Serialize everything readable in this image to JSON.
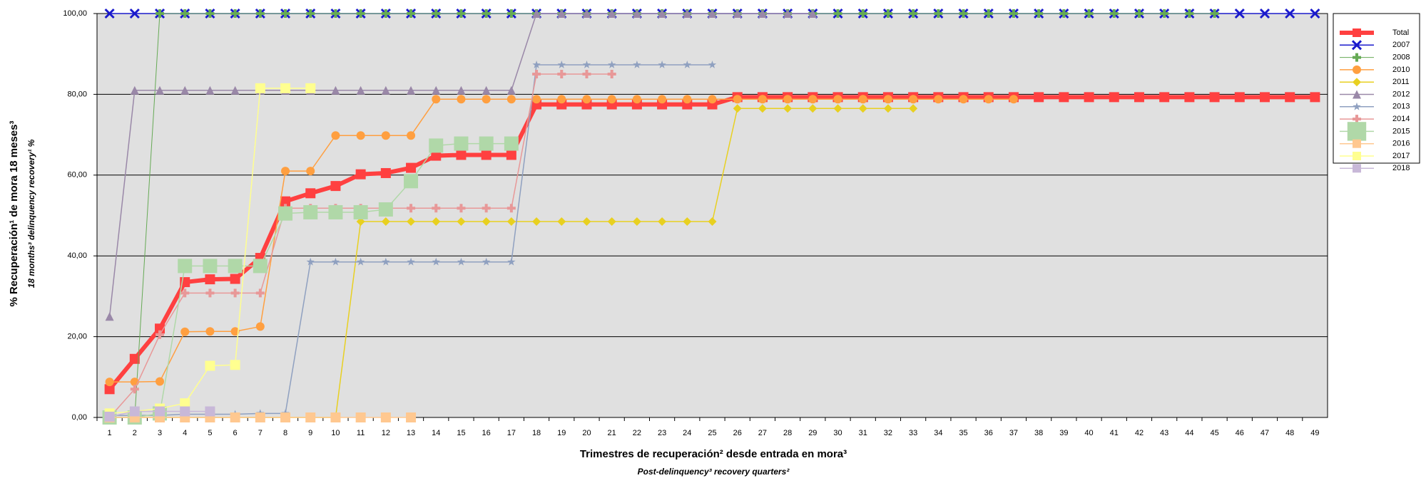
{
  "chart_data": {
    "type": "line",
    "y_label": "% Recuperación¹ de mora 18 meses³",
    "y_label_sub": "18 months³ delinquency recovery¹ %",
    "x_label": "Trimestres de recuperación² desde entrada en mora³",
    "x_label_sub": "Post-delinquency³ recovery quarters²",
    "categories": [
      1,
      2,
      3,
      4,
      5,
      6,
      7,
      8,
      9,
      10,
      11,
      12,
      13,
      14,
      15,
      16,
      17,
      18,
      19,
      20,
      21,
      22,
      23,
      24,
      25,
      26,
      27,
      28,
      29,
      30,
      31,
      32,
      33,
      34,
      35,
      36,
      37,
      38,
      39,
      40,
      41,
      42,
      43,
      44,
      45,
      46,
      47,
      48,
      49
    ],
    "ylim": [
      0,
      100
    ],
    "yticks": [
      {
        "value": 0,
        "label": "0,00"
      },
      {
        "value": 20,
        "label": "20,00"
      },
      {
        "value": 40,
        "label": "40,00"
      },
      {
        "value": 60,
        "label": "60,00"
      },
      {
        "value": 80,
        "label": "80,00"
      },
      {
        "value": 100,
        "label": "100,00"
      }
    ],
    "grid": true,
    "legend": "right",
    "series": [
      {
        "name": "Total",
        "color": "#ff4040",
        "marker": "square",
        "width": 6,
        "values": [
          7,
          14.5,
          22,
          33.5,
          34.2,
          34.3,
          39.5,
          53.5,
          55.5,
          57.3,
          60.2,
          60.5,
          61.8,
          64.8,
          65,
          65,
          65,
          77.5,
          77.5,
          77.5,
          77.5,
          77.5,
          77.5,
          77.5,
          77.5,
          79.3,
          79.3,
          79.3,
          79.3,
          79.3,
          79.3,
          79.3,
          79.3,
          79.3,
          79.3,
          79.3,
          79.3,
          79.3,
          79.3,
          79.3,
          79.3,
          79.3,
          79.3,
          79.3,
          79.3,
          79.3,
          79.3,
          79.3,
          79.3
        ]
      },
      {
        "name": "2007",
        "color": "#1a1acc",
        "marker": "x",
        "width": 1.5,
        "values": [
          100,
          100,
          100,
          100,
          100,
          100,
          100,
          100,
          100,
          100,
          100,
          100,
          100,
          100,
          100,
          100,
          100,
          100,
          100,
          100,
          100,
          100,
          100,
          100,
          100,
          100,
          100,
          100,
          100,
          100,
          100,
          100,
          100,
          100,
          100,
          100,
          100,
          100,
          100,
          100,
          100,
          100,
          100,
          100,
          100,
          100,
          100,
          100,
          100
        ]
      },
      {
        "name": "2008",
        "color": "#66aa55",
        "marker": "plus",
        "width": 1,
        "values": [
          0,
          0,
          100,
          100,
          100,
          100,
          100,
          100,
          100,
          100,
          100,
          100,
          100,
          100,
          100,
          100,
          100,
          100,
          100,
          100,
          100,
          100,
          100,
          100,
          100,
          100,
          100,
          100,
          100,
          100,
          100,
          100,
          100,
          100,
          100,
          100,
          100,
          100,
          100,
          100,
          100,
          100,
          100,
          100,
          100,
          null,
          null,
          null,
          null
        ]
      },
      {
        "name": "2010",
        "color": "#ff9f40",
        "marker": "circle",
        "width": 1.5,
        "values": [
          8.8,
          8.8,
          8.9,
          21.2,
          21.3,
          21.3,
          22.5,
          61,
          61,
          69.8,
          69.8,
          69.8,
          69.8,
          78.8,
          78.8,
          78.8,
          78.8,
          78.8,
          78.8,
          78.8,
          78.8,
          78.8,
          78.8,
          78.8,
          78.8,
          78.8,
          78.8,
          78.8,
          78.8,
          78.8,
          78.8,
          78.8,
          78.8,
          78.8,
          78.8,
          78.8,
          78.8,
          null,
          null,
          null,
          null,
          null,
          null,
          null,
          null,
          null,
          null,
          null,
          null
        ]
      },
      {
        "name": "2011",
        "color": "#e8d020",
        "marker": "diamond",
        "width": 1.5,
        "values": [
          0,
          0,
          0,
          0,
          0,
          0,
          0,
          0,
          0,
          0,
          48.5,
          48.5,
          48.5,
          48.5,
          48.5,
          48.5,
          48.5,
          48.5,
          48.5,
          48.5,
          48.5,
          48.5,
          48.5,
          48.5,
          48.5,
          76.5,
          76.5,
          76.5,
          76.5,
          76.5,
          76.5,
          76.5,
          76.5,
          null,
          null,
          null,
          null,
          null,
          null,
          null,
          null,
          null,
          null,
          null,
          null,
          null,
          null,
          null,
          null
        ]
      },
      {
        "name": "2012",
        "color": "#9a88a8",
        "marker": "triangle",
        "width": 1.5,
        "values": [
          25,
          81,
          81,
          81,
          81,
          81,
          81,
          81,
          81,
          81,
          81,
          81,
          81,
          81,
          81,
          81,
          81,
          100,
          100,
          100,
          100,
          100,
          100,
          100,
          100,
          100,
          100,
          100,
          100,
          null,
          null,
          null,
          null,
          null,
          null,
          null,
          null,
          null,
          null,
          null,
          null,
          null,
          null,
          null,
          null,
          null,
          null,
          null,
          null
        ]
      },
      {
        "name": "2013",
        "color": "#8fa0c0",
        "marker": "star",
        "width": 1.5,
        "values": [
          0.5,
          0.5,
          0.5,
          0.8,
          0.8,
          0.8,
          1,
          1,
          38.5,
          38.5,
          38.5,
          38.5,
          38.5,
          38.5,
          38.5,
          38.5,
          38.5,
          87.3,
          87.3,
          87.3,
          87.3,
          87.3,
          87.3,
          87.3,
          87.3,
          null,
          null,
          null,
          null,
          null,
          null,
          null,
          null,
          null,
          null,
          null,
          null,
          null,
          null,
          null,
          null,
          null,
          null,
          null,
          null,
          null,
          null,
          null,
          null
        ]
      },
      {
        "name": "2014",
        "color": "#e89898",
        "marker": "plus",
        "width": 1.5,
        "values": [
          0,
          7,
          20.5,
          30.8,
          30.8,
          30.8,
          30.8,
          51.8,
          51.8,
          51.8,
          51.8,
          51.8,
          51.8,
          51.8,
          51.8,
          51.8,
          51.8,
          85,
          85,
          85,
          85,
          null,
          null,
          null,
          null,
          null,
          null,
          null,
          null,
          null,
          null,
          null,
          null,
          null,
          null,
          null,
          null,
          null,
          null,
          null,
          null,
          null,
          null,
          null,
          null,
          null,
          null,
          null,
          null
        ]
      },
      {
        "name": "2015",
        "color": "#b0d8a8",
        "marker": "square",
        "width": 1.5,
        "values": [
          0,
          0,
          1,
          37.5,
          37.5,
          37.5,
          37.5,
          50.5,
          50.8,
          50.8,
          50.8,
          51.5,
          58.5,
          67.3,
          67.8,
          67.8,
          67.8,
          null,
          null,
          null,
          null,
          null,
          null,
          null,
          null,
          null,
          null,
          null,
          null,
          null,
          null,
          null,
          null,
          null,
          null,
          null,
          null,
          null,
          null,
          null,
          null,
          null,
          null,
          null,
          null,
          null,
          null,
          null,
          null
        ]
      },
      {
        "name": "2016",
        "color": "#ffc890",
        "marker": "square",
        "width": 1.5,
        "values": [
          0,
          0,
          0,
          0,
          0,
          0,
          0,
          0,
          0,
          0,
          0,
          0,
          0,
          null,
          null,
          null,
          null,
          null,
          null,
          null,
          null,
          null,
          null,
          null,
          null,
          null,
          null,
          null,
          null,
          null,
          null,
          null,
          null,
          null,
          null,
          null,
          null,
          null,
          null,
          null,
          null,
          null,
          null,
          null,
          null,
          null,
          null,
          null,
          null
        ]
      },
      {
        "name": "2017",
        "color": "#ffff90",
        "marker": "square",
        "width": 1.5,
        "values": [
          1,
          1.5,
          2.2,
          3.5,
          12.8,
          13,
          81.5,
          81.5,
          81.5,
          null,
          null,
          null,
          null,
          null,
          null,
          null,
          null,
          null,
          null,
          null,
          null,
          null,
          null,
          null,
          null,
          null,
          null,
          null,
          null,
          null,
          null,
          null,
          null,
          null,
          null,
          null,
          null,
          null,
          null,
          null,
          null,
          null,
          null,
          null,
          null,
          null,
          null,
          null,
          null
        ]
      },
      {
        "name": "2018",
        "color": "#c8b8d8",
        "marker": "square",
        "width": 1.5,
        "values": [
          0.2,
          1.5,
          1.5,
          1.5,
          1.5,
          null,
          null,
          null,
          null,
          null,
          null,
          null,
          null,
          null,
          null,
          null,
          null,
          null,
          null,
          null,
          null,
          null,
          null,
          null,
          null,
          null,
          null,
          null,
          null,
          null,
          null,
          null,
          null,
          null,
          null,
          null,
          null,
          null,
          null,
          null,
          null,
          null,
          null,
          null,
          null,
          null,
          null,
          null,
          null
        ]
      }
    ]
  }
}
